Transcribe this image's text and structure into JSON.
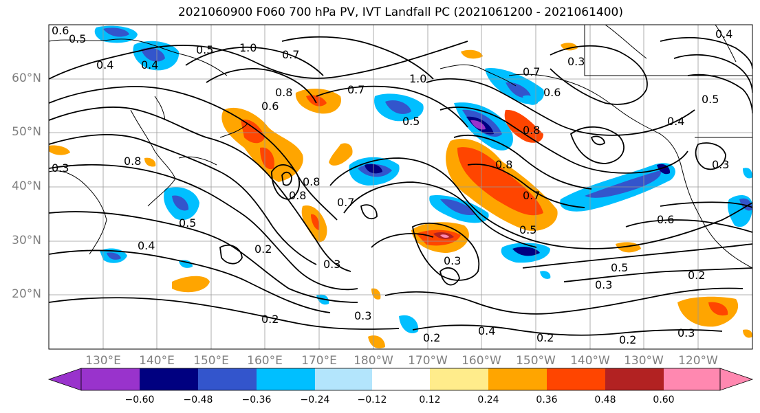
{
  "map": {
    "title": "2021060900 F060 700 hPa PV, IVT Landfall PC (2021061200 - 2021061400)",
    "lat_labels": [
      "60°N",
      "50°N",
      "40°N",
      "30°N",
      "20°N"
    ],
    "lon_labels": [
      "130°E",
      "140°E",
      "150°E",
      "160°E",
      "170°E",
      "180°W",
      "170°W",
      "160°W",
      "150°W",
      "140°W",
      "130°W",
      "120°W"
    ],
    "contour_labels": [
      "0.6",
      "0.5",
      "0.4",
      "0.4",
      "0.5",
      "1.0",
      "0.7",
      "0.8",
      "1.0",
      "0.7",
      "0.6",
      "0.5",
      "0.7",
      "0.6",
      "0.3",
      "0.4",
      "0.5",
      "0.4",
      "0.3",
      "0.8",
      "0.8",
      "0.8",
      "0.7",
      "0.8",
      "0.7",
      "0.5",
      "0.8",
      "0.3",
      "0.6",
      "0.5",
      "0.3",
      "0.2",
      "0.3",
      "0.2",
      "0.2",
      "0.4",
      "0.2",
      "0.3",
      "0.2",
      "0.4",
      "0.3",
      "0.5",
      "0.3",
      "0.2"
    ]
  },
  "colorbar": {
    "ticks": [
      "−0.60",
      "−0.48",
      "−0.36",
      "−0.24",
      "−0.12",
      "0.12",
      "0.24",
      "0.36",
      "0.48",
      "0.60"
    ],
    "colors": [
      "#9933cc",
      "#000080",
      "#3355cc",
      "#00bfff",
      "#b3e5fc",
      "#ffffff",
      "#ffec8b",
      "#ffa500",
      "#ff4500",
      "#b22222",
      "#ff88b0"
    ]
  },
  "palette": {
    "neg_strong": "#000080",
    "neg_mid": "#3355cc",
    "neg_light": "#00bfff",
    "neg_pale": "#b3e5fc",
    "neg_extreme": "#9933cc",
    "pos_pale": "#ffec8b",
    "pos_light": "#ffa500",
    "pos_mid": "#ff4500",
    "pos_strong": "#b22222",
    "pos_extreme": "#ff88b0"
  }
}
